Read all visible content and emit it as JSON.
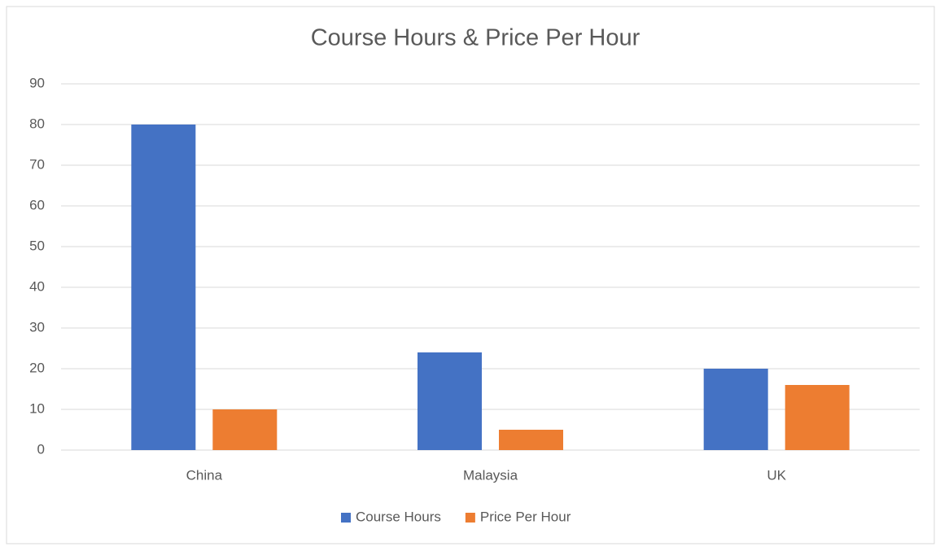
{
  "chart_data": {
    "type": "bar",
    "title": "Course Hours & Price Per Hour",
    "categories": [
      "China",
      "Malaysia",
      "UK"
    ],
    "series": [
      {
        "name": "Course Hours",
        "color": "#4472c4",
        "values": [
          80,
          24,
          20
        ]
      },
      {
        "name": "Price Per Hour",
        "color": "#ed7d31",
        "values": [
          10,
          5,
          16
        ]
      }
    ],
    "ylim": [
      0,
      90
    ],
    "yticks": [
      0,
      10,
      20,
      30,
      40,
      50,
      60,
      70,
      80,
      90
    ],
    "grid": true,
    "legend": "bottom"
  }
}
